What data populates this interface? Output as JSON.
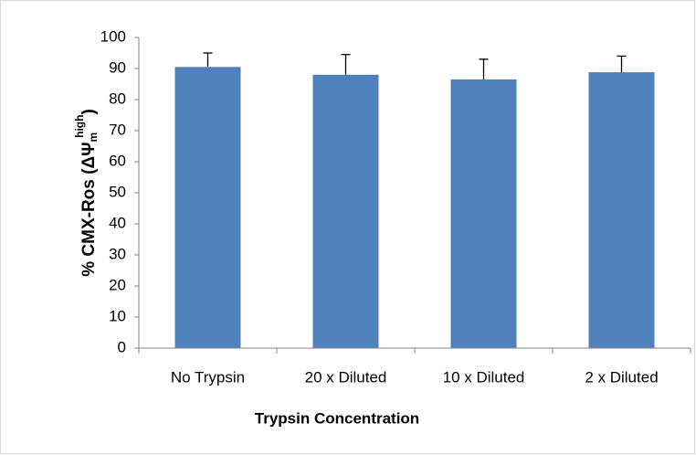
{
  "chart_data": {
    "type": "bar",
    "ylabel": {
      "main": "% CMX-Ros (ΔΨ",
      "sub": "m",
      "sup": "high",
      "close": ")"
    },
    "xlabel": "Trypsin Concentration",
    "categories": [
      "No Trypsin",
      "20 x Diluted",
      "10 x Diluted",
      "2 x Diluted"
    ],
    "values": [
      90.5,
      88,
      86.5,
      88.8
    ],
    "errors": [
      4.5,
      6.5,
      6.5,
      5.2
    ],
    "color": "#4f81bd",
    "ylim": [
      0,
      100
    ],
    "yticks": [
      0,
      10,
      20,
      30,
      40,
      50,
      60,
      70,
      80,
      90,
      100
    ],
    "grid": false
  }
}
